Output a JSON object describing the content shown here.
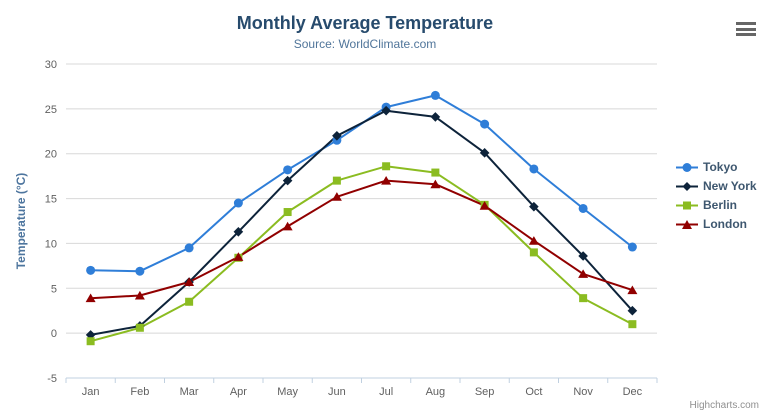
{
  "chart": {
    "title": "Monthly Average Temperature",
    "subtitle": "Source: WorldClimate.com",
    "credit": "Highcharts.com"
  },
  "colors": {
    "title": "#274b6d",
    "subtitle": "#50759a",
    "axis_labels": "#606060",
    "y_axis_title": "#4d759e",
    "gridline": "#d8d8d8",
    "axis_line": "#c0d0e0",
    "legend_text": "#3e576f",
    "credit_text": "#909090",
    "menu_icon": "#666666"
  },
  "chart_data": {
    "type": "line",
    "title": "Monthly Average Temperature",
    "subtitle": "Source: WorldClimate.com",
    "xlabel": "",
    "ylabel": "Temperature (°C)",
    "categories": [
      "Jan",
      "Feb",
      "Mar",
      "Apr",
      "May",
      "Jun",
      "Jul",
      "Aug",
      "Sep",
      "Oct",
      "Nov",
      "Dec"
    ],
    "ylim": [
      -5,
      30
    ],
    "ytick_interval": 5,
    "grid": true,
    "legend_position": "right-middle",
    "series": [
      {
        "name": "Tokyo",
        "color": "#2f7ed8",
        "marker": "circle",
        "values": [
          7.0,
          6.9,
          9.5,
          14.5,
          18.2,
          21.5,
          25.2,
          26.5,
          23.3,
          18.3,
          13.9,
          9.6
        ]
      },
      {
        "name": "New York",
        "color": "#0d233a",
        "marker": "diamond",
        "values": [
          -0.2,
          0.8,
          5.7,
          11.3,
          17.0,
          22.0,
          24.8,
          24.1,
          20.1,
          14.1,
          8.6,
          2.5
        ]
      },
      {
        "name": "Berlin",
        "color": "#8bbc21",
        "marker": "square",
        "values": [
          -0.9,
          0.6,
          3.5,
          8.4,
          13.5,
          17.0,
          18.6,
          17.9,
          14.3,
          9.0,
          3.9,
          1.0
        ]
      },
      {
        "name": "London",
        "color": "#910000",
        "marker": "triangle",
        "values": [
          3.9,
          4.2,
          5.7,
          8.5,
          11.9,
          15.2,
          17.0,
          16.6,
          14.2,
          10.3,
          6.6,
          4.8
        ]
      }
    ]
  }
}
